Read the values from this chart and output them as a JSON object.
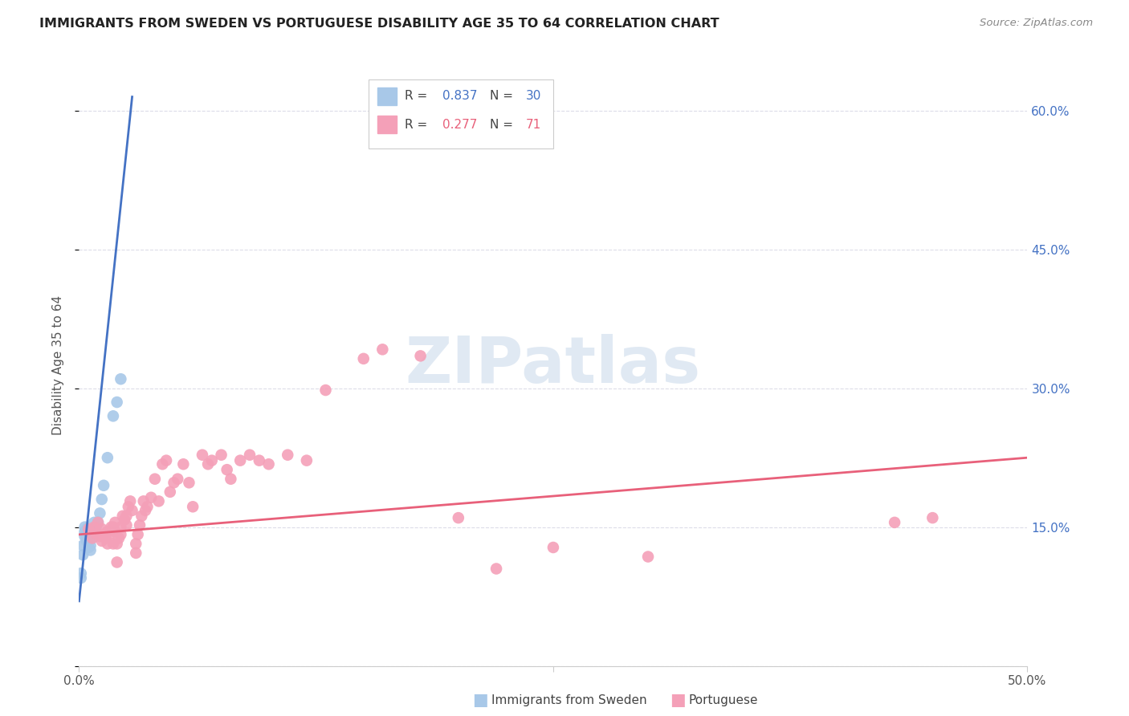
{
  "title": "IMMIGRANTS FROM SWEDEN VS PORTUGUESE DISABILITY AGE 35 TO 64 CORRELATION CHART",
  "source": "Source: ZipAtlas.com",
  "ylabel": "Disability Age 35 to 64",
  "yticks": [
    0.0,
    0.15,
    0.3,
    0.45,
    0.6
  ],
  "ytick_labels": [
    "",
    "15.0%",
    "30.0%",
    "45.0%",
    "60.0%"
  ],
  "xlim": [
    0.0,
    0.5
  ],
  "ylim": [
    0.0,
    0.65
  ],
  "sweden_color": "#a8c8e8",
  "portuguese_color": "#f4a0b8",
  "sweden_line_color": "#4472c4",
  "portuguese_line_color": "#e8607a",
  "sweden_scatter_x": [
    0.001,
    0.001,
    0.002,
    0.002,
    0.003,
    0.003,
    0.003,
    0.004,
    0.004,
    0.004,
    0.005,
    0.005,
    0.005,
    0.005,
    0.006,
    0.006,
    0.006,
    0.007,
    0.007,
    0.008,
    0.008,
    0.009,
    0.01,
    0.011,
    0.012,
    0.013,
    0.015,
    0.018,
    0.02,
    0.022
  ],
  "sweden_scatter_y": [
    0.095,
    0.1,
    0.12,
    0.13,
    0.14,
    0.145,
    0.15,
    0.135,
    0.14,
    0.148,
    0.128,
    0.135,
    0.14,
    0.145,
    0.125,
    0.13,
    0.142,
    0.138,
    0.143,
    0.148,
    0.155,
    0.15,
    0.155,
    0.165,
    0.18,
    0.195,
    0.225,
    0.27,
    0.285,
    0.31
  ],
  "portuguese_scatter_x": [
    0.005,
    0.007,
    0.008,
    0.009,
    0.01,
    0.011,
    0.012,
    0.012,
    0.013,
    0.014,
    0.015,
    0.015,
    0.016,
    0.017,
    0.018,
    0.018,
    0.019,
    0.019,
    0.02,
    0.02,
    0.021,
    0.022,
    0.022,
    0.023,
    0.024,
    0.025,
    0.025,
    0.026,
    0.027,
    0.028,
    0.03,
    0.03,
    0.031,
    0.032,
    0.033,
    0.034,
    0.035,
    0.036,
    0.038,
    0.04,
    0.042,
    0.044,
    0.046,
    0.048,
    0.05,
    0.052,
    0.055,
    0.058,
    0.06,
    0.065,
    0.068,
    0.07,
    0.075,
    0.078,
    0.08,
    0.085,
    0.09,
    0.095,
    0.1,
    0.11,
    0.12,
    0.13,
    0.15,
    0.16,
    0.18,
    0.2,
    0.22,
    0.25,
    0.3,
    0.43,
    0.45
  ],
  "portuguese_scatter_y": [
    0.148,
    0.138,
    0.15,
    0.143,
    0.155,
    0.14,
    0.135,
    0.148,
    0.142,
    0.138,
    0.132,
    0.145,
    0.142,
    0.15,
    0.132,
    0.15,
    0.155,
    0.145,
    0.112,
    0.132,
    0.138,
    0.142,
    0.15,
    0.162,
    0.158,
    0.152,
    0.162,
    0.172,
    0.178,
    0.168,
    0.122,
    0.132,
    0.142,
    0.152,
    0.162,
    0.178,
    0.168,
    0.172,
    0.182,
    0.202,
    0.178,
    0.218,
    0.222,
    0.188,
    0.198,
    0.202,
    0.218,
    0.198,
    0.172,
    0.228,
    0.218,
    0.222,
    0.228,
    0.212,
    0.202,
    0.222,
    0.228,
    0.222,
    0.218,
    0.228,
    0.222,
    0.298,
    0.332,
    0.342,
    0.335,
    0.16,
    0.105,
    0.128,
    0.118,
    0.155,
    0.16
  ],
  "sweden_line_x": [
    0.0,
    0.028
  ],
  "sweden_line_y": [
    0.07,
    0.615
  ],
  "portuguese_line_x": [
    0.0,
    0.5
  ],
  "portuguese_line_y": [
    0.142,
    0.225
  ],
  "watermark": "ZIPatlas",
  "background_color": "#ffffff",
  "grid_color": "#dcdce8"
}
